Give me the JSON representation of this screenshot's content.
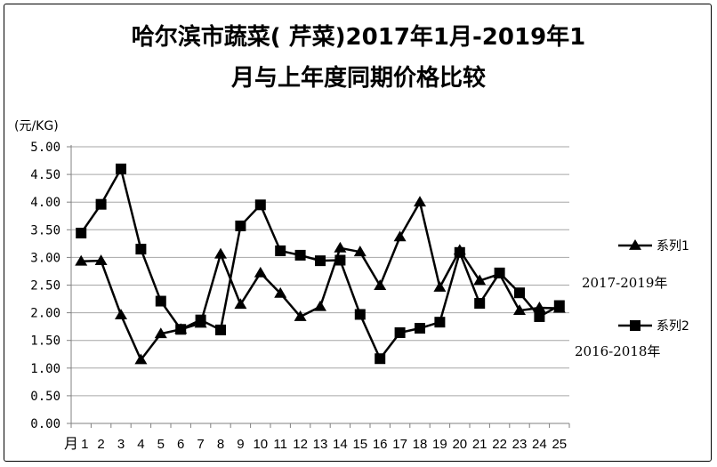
{
  "title_line1": "哈尔滨市蔬菜( 芹菜)2017年1月-2019年1",
  "title_line2": "月与上年度同期价格比较",
  "unit_label": "(元/KG)",
  "annotation_series1": "2017-2019年",
  "annotation_series2": "2016-2018年",
  "chart_data": {
    "type": "line",
    "title": "哈尔滨市蔬菜( 芹菜)2017年1月-2019年1月与上年度同期价格比较",
    "ylabel": "(元/KG)",
    "ylim": [
      0,
      5
    ],
    "ytick_labels": [
      "0.00",
      "0.50",
      "1.00",
      "1.50",
      "2.00",
      "2.50",
      "3.00",
      "3.50",
      "4.00",
      "4.50",
      "5.00"
    ],
    "yticks": [
      0,
      0.5,
      1,
      1.5,
      2,
      2.5,
      3,
      3.5,
      4,
      4.5,
      5
    ],
    "x_prefix_label": "月",
    "categories": [
      "1",
      "2",
      "3",
      "4",
      "5",
      "6",
      "7",
      "8",
      "9",
      "10",
      "11",
      "12",
      "13",
      "14",
      "15",
      "16",
      "17",
      "18",
      "19",
      "20",
      "21",
      "22",
      "23",
      "24",
      "25"
    ],
    "grid": "horizontal",
    "legend_position": "right",
    "series": [
      {
        "name": "系列1",
        "marker": "triangle",
        "color": "#000000",
        "values": [
          2.93,
          2.94,
          1.96,
          1.15,
          1.62,
          1.7,
          1.81,
          3.06,
          2.15,
          2.72,
          2.35,
          1.93,
          2.11,
          3.17,
          3.1,
          2.49,
          3.37,
          4.0,
          2.46,
          3.13,
          2.58,
          2.7,
          2.04,
          2.09,
          2.08
        ]
      },
      {
        "name": "系列2",
        "marker": "square",
        "color": "#000000",
        "values": [
          3.44,
          3.96,
          4.6,
          3.15,
          2.21,
          1.7,
          1.87,
          1.69,
          3.57,
          3.95,
          3.12,
          3.04,
          2.94,
          2.95,
          1.97,
          1.17,
          1.64,
          1.72,
          1.83,
          3.09,
          2.17,
          2.72,
          2.36,
          1.93,
          2.13
        ]
      }
    ]
  }
}
